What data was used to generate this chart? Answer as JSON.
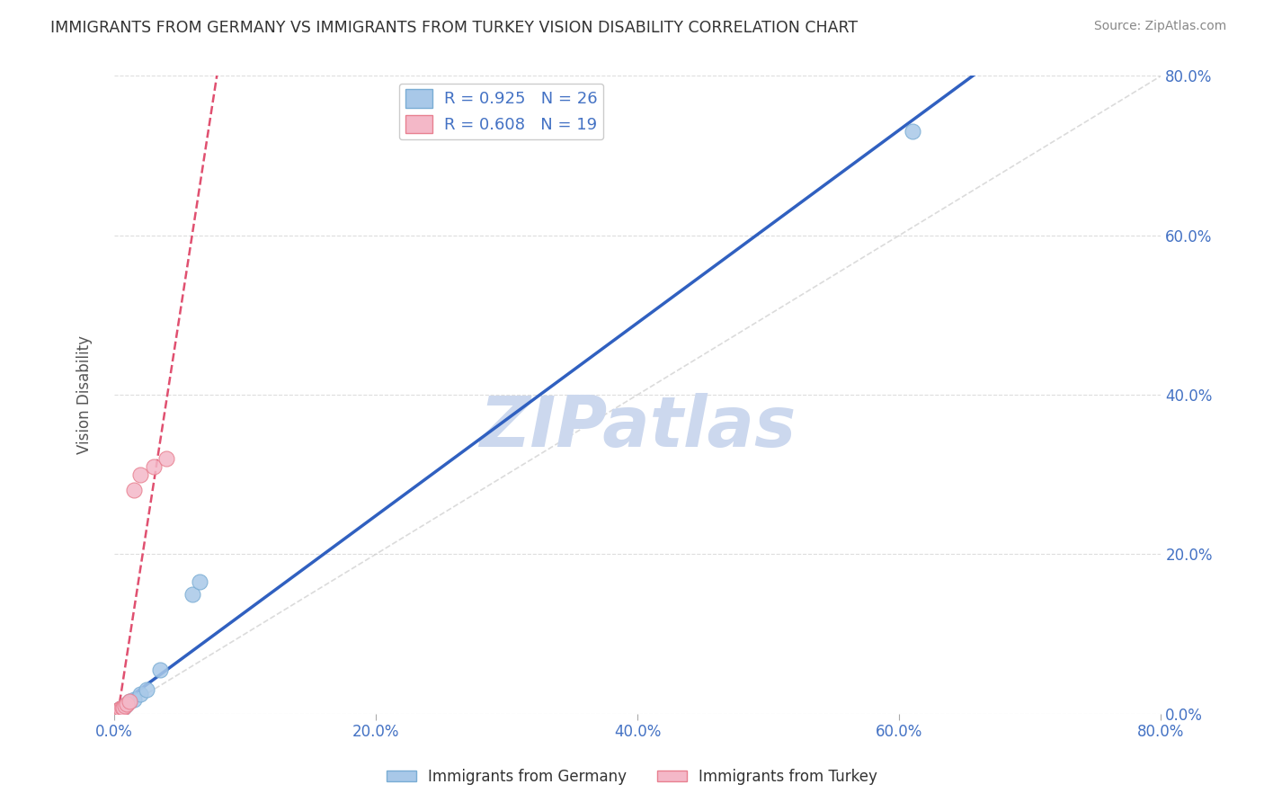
{
  "title": "IMMIGRANTS FROM GERMANY VS IMMIGRANTS FROM TURKEY VISION DISABILITY CORRELATION CHART",
  "source": "Source: ZipAtlas.com",
  "ylabel": "Vision Disability",
  "xlim": [
    0.0,
    0.8
  ],
  "ylim": [
    0.0,
    0.8
  ],
  "R_germany": 0.925,
  "N_germany": 26,
  "R_turkey": 0.608,
  "N_turkey": 19,
  "germany_color": "#a8c8e8",
  "turkey_color": "#f4b8c8",
  "germany_edge": "#7aadd4",
  "turkey_edge": "#e88090",
  "regression_germany_color": "#3060c0",
  "regression_turkey_color": "#e05070",
  "diagonal_color": "#cccccc",
  "watermark": "ZIPatlas",
  "watermark_color": "#ccd8ee",
  "background_color": "#ffffff",
  "grid_color": "#dddddd",
  "title_color": "#333333",
  "tick_label_color": "#4472c4",
  "germany_x": [
    0.001,
    0.001,
    0.002,
    0.002,
    0.002,
    0.003,
    0.003,
    0.003,
    0.004,
    0.004,
    0.005,
    0.005,
    0.005,
    0.006,
    0.006,
    0.007,
    0.008,
    0.01,
    0.012,
    0.015,
    0.02,
    0.025,
    0.035,
    0.06,
    0.065,
    0.61
  ],
  "germany_y": [
    0.001,
    0.001,
    0.002,
    0.002,
    0.003,
    0.003,
    0.003,
    0.004,
    0.004,
    0.005,
    0.005,
    0.005,
    0.006,
    0.006,
    0.007,
    0.008,
    0.01,
    0.012,
    0.015,
    0.018,
    0.025,
    0.03,
    0.055,
    0.15,
    0.165,
    0.73
  ],
  "turkey_x": [
    0.001,
    0.001,
    0.002,
    0.002,
    0.003,
    0.003,
    0.004,
    0.004,
    0.005,
    0.005,
    0.006,
    0.007,
    0.008,
    0.01,
    0.012,
    0.015,
    0.02,
    0.03,
    0.04
  ],
  "turkey_y": [
    0.001,
    0.002,
    0.002,
    0.003,
    0.003,
    0.004,
    0.004,
    0.005,
    0.006,
    0.006,
    0.007,
    0.008,
    0.01,
    0.012,
    0.015,
    0.28,
    0.3,
    0.31,
    0.32
  ]
}
